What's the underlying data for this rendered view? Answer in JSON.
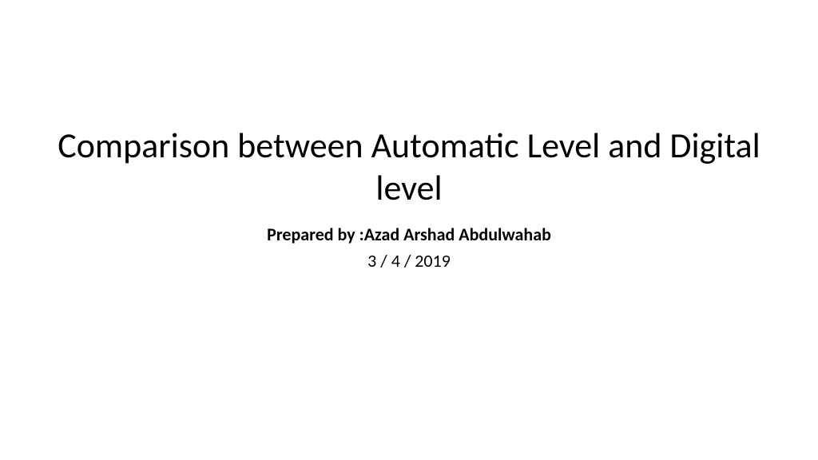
{
  "slide": {
    "title": "Comparison between Automatic Level and Digital level",
    "subtitle": "Prepared by :Azad Arshad Abdulwahab",
    "date": "3  /  4 / 2019",
    "background_color": "#ffffff",
    "title_fontsize": 44,
    "title_fontweight": 400,
    "title_color": "#000000",
    "subtitle_fontsize": 22,
    "subtitle_fontweight": 700,
    "subtitle_color": "#000000",
    "date_fontsize": 22,
    "date_fontweight": 400,
    "date_color": "#000000",
    "font_family": "Calibri"
  }
}
